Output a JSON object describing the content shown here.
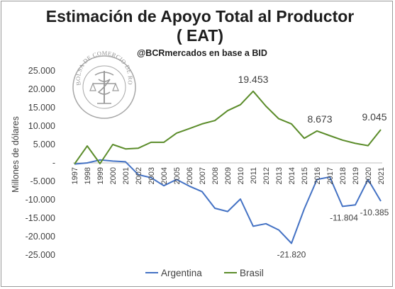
{
  "title_line1": "Estimación de Apoyo Total al Productor",
  "title_line2": "( EAT)",
  "subtitle": "@BCRmercados en base a BID",
  "seal": {
    "text": "BOLSA DE COMERCIO DE ROSARIO"
  },
  "chart_data": {
    "type": "line",
    "x": [
      "1997",
      "1998",
      "1999",
      "2000",
      "2001",
      "2002",
      "2003",
      "2004",
      "2005",
      "2006",
      "2007",
      "2008",
      "2009",
      "2010",
      "2011",
      "2012",
      "2013",
      "2014",
      "2015",
      "2016",
      "2017",
      "2018",
      "2019",
      "2020",
      "2021"
    ],
    "series": [
      {
        "name": "Argentina",
        "color": "#4472c4",
        "values": [
          -300,
          0,
          800,
          500,
          300,
          -3200,
          -4000,
          -6200,
          -4500,
          -6300,
          -7800,
          -12300,
          -13200,
          -9800,
          -17200,
          -16500,
          -18200,
          -21820,
          -12500,
          -4500,
          -3800,
          -11804,
          -11400,
          -4500,
          -10385
        ]
      },
      {
        "name": "Brasil",
        "color": "#5b8c2a",
        "values": [
          -300,
          4600,
          -200,
          5000,
          3800,
          4000,
          5600,
          5600,
          8100,
          9300,
          10600,
          11500,
          14200,
          15800,
          19453,
          15400,
          12000,
          10600,
          6700,
          8673,
          7400,
          6200,
          5300,
          4700,
          9045
        ]
      }
    ],
    "data_labels": [
      {
        "series": "Brasil",
        "x": "2011",
        "text": "19.453"
      },
      {
        "series": "Brasil",
        "x": "2016",
        "text": "8.673"
      },
      {
        "series": "Brasil",
        "x": "2021",
        "text": "9.045"
      },
      {
        "series": "Argentina",
        "x": "2014",
        "text": "-21.820"
      },
      {
        "series": "Argentina",
        "x": "2018",
        "text": "-11.804"
      },
      {
        "series": "Argentina",
        "x": "2021",
        "text": "-10.385"
      }
    ],
    "ylabel": "Millones de dólares",
    "ylim": [
      -25000,
      25000
    ],
    "yticks": [
      25000,
      20000,
      15000,
      10000,
      5000,
      0,
      -5000,
      -10000,
      -15000,
      -20000,
      -25000
    ],
    "ytick_labels": [
      "25.000",
      "20.000",
      "15.000",
      "10.000",
      "5.000",
      "-",
      "-5.000",
      "-10.000",
      "-15.000",
      "-20.000",
      "-25.000"
    ],
    "grid": false,
    "legend_position": "bottom"
  }
}
